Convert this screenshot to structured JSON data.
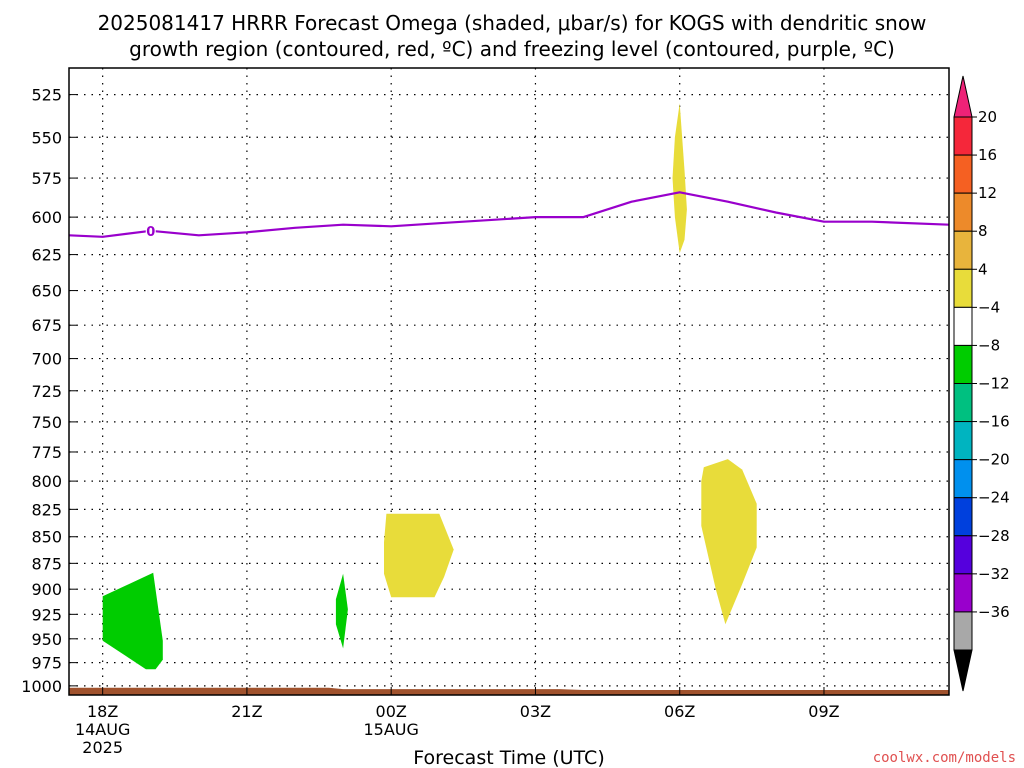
{
  "chart_data": {
    "type": "area",
    "title_line1": "2025081417 HRRR Forecast Omega (shaded, μbar/s) for KOGS with dendritic snow",
    "title_line2": "growth region (contoured, red, ºC) and freezing level (contoured, purple, ºC)",
    "xlabel": "Forecast Time (UTC)",
    "credit": "coolwx.com/models",
    "xlim": [
      -0.7,
      17.6
    ],
    "ylim": [
      1010,
      510
    ],
    "y_scale": "log-pressure",
    "grid": true,
    "y_ticks": [
      525,
      550,
      575,
      600,
      625,
      650,
      675,
      700,
      725,
      750,
      775,
      800,
      825,
      850,
      875,
      900,
      925,
      950,
      975,
      1000
    ],
    "x_ticks": [
      {
        "x": 0,
        "label": "18Z",
        "sub1": "14AUG",
        "sub2": "2025"
      },
      {
        "x": 3,
        "label": "21Z",
        "sub1": "",
        "sub2": ""
      },
      {
        "x": 6,
        "label": "00Z",
        "sub1": "15AUG",
        "sub2": ""
      },
      {
        "x": 9,
        "label": "03Z",
        "sub1": "",
        "sub2": ""
      },
      {
        "x": 12,
        "label": "06Z",
        "sub1": "",
        "sub2": ""
      },
      {
        "x": 15,
        "label": "09Z",
        "sub1": "",
        "sub2": ""
      }
    ],
    "freezing_level": {
      "label": "0",
      "label_point": [
        1.0,
        609
      ],
      "color": "#9900cc",
      "points": [
        [
          -0.7,
          612
        ],
        [
          0,
          613
        ],
        [
          1,
          609
        ],
        [
          2,
          612
        ],
        [
          3,
          610
        ],
        [
          4,
          607
        ],
        [
          5,
          605
        ],
        [
          6,
          606
        ],
        [
          7,
          604
        ],
        [
          8,
          602
        ],
        [
          9,
          600
        ],
        [
          10,
          600
        ],
        [
          11,
          590
        ],
        [
          12,
          584
        ],
        [
          13,
          590
        ],
        [
          14,
          597
        ],
        [
          15,
          603
        ],
        [
          16,
          603
        ],
        [
          17.6,
          605
        ]
      ]
    },
    "omega_regions": [
      {
        "value_range": [
          -8,
          -4
        ],
        "color": "#00cc00",
        "points": [
          [
            0,
            907
          ],
          [
            1.05,
            884
          ],
          [
            1.25,
            952
          ],
          [
            1.25,
            972
          ],
          [
            1.1,
            982
          ],
          [
            0.9,
            982
          ],
          [
            0,
            952
          ]
        ]
      },
      {
        "value_range": [
          -8,
          -4
        ],
        "color": "#00cc00",
        "points": [
          [
            5,
            885
          ],
          [
            5.1,
            920
          ],
          [
            5,
            960
          ],
          [
            4.85,
            935
          ],
          [
            4.85,
            910
          ]
        ]
      },
      {
        "value_range": [
          4,
          8
        ],
        "color": "#e8dc3a",
        "points": [
          [
            5.9,
            829
          ],
          [
            7.0,
            829
          ],
          [
            7.3,
            862
          ],
          [
            7.1,
            888
          ],
          [
            6.9,
            908
          ],
          [
            6.0,
            908
          ],
          [
            5.85,
            885
          ],
          [
            5.85,
            855
          ]
        ]
      },
      {
        "value_range": [
          4,
          8
        ],
        "color": "#e8dc3a",
        "points": [
          [
            12,
            530
          ],
          [
            12.1,
            570
          ],
          [
            12.15,
            595
          ],
          [
            12.1,
            615
          ],
          [
            12.0,
            624
          ],
          [
            11.9,
            600
          ],
          [
            11.85,
            575
          ],
          [
            11.9,
            550
          ]
        ]
      },
      {
        "value_range": [
          4,
          8
        ],
        "color": "#e8dc3a",
        "points": [
          [
            12.5,
            788
          ],
          [
            13.0,
            781
          ],
          [
            13.3,
            790
          ],
          [
            13.6,
            820
          ],
          [
            13.6,
            860
          ],
          [
            13.3,
            895
          ],
          [
            12.95,
            935
          ],
          [
            12.75,
            900
          ],
          [
            12.45,
            840
          ],
          [
            12.45,
            800
          ]
        ]
      }
    ],
    "terrain": {
      "color": "#a0522d",
      "points": [
        [
          -0.7,
          1002
        ],
        [
          4.7,
          1002
        ],
        [
          5,
          1003.5
        ],
        [
          9.5,
          1003.5
        ],
        [
          10,
          1004.5
        ],
        [
          17.6,
          1004.5
        ]
      ]
    },
    "colorbar": {
      "labels": [
        "20",
        "16",
        "12",
        "8",
        "4",
        "−4",
        "−8",
        "−12",
        "−16",
        "−20",
        "−24",
        "−28",
        "−32",
        "−36"
      ],
      "colors": [
        "#f5273a",
        "#f56022",
        "#ed8a2a",
        "#e8b43c",
        "#e8dc3a",
        "#ffffff",
        "#00cc00",
        "#00c080",
        "#00b4c0",
        "#0090ee",
        "#0040dd",
        "#5500dd",
        "#9900cc",
        "#a8a8a8"
      ],
      "top_arrow_color": "#ee2277",
      "bottom_arrow_color": "#000000"
    }
  }
}
